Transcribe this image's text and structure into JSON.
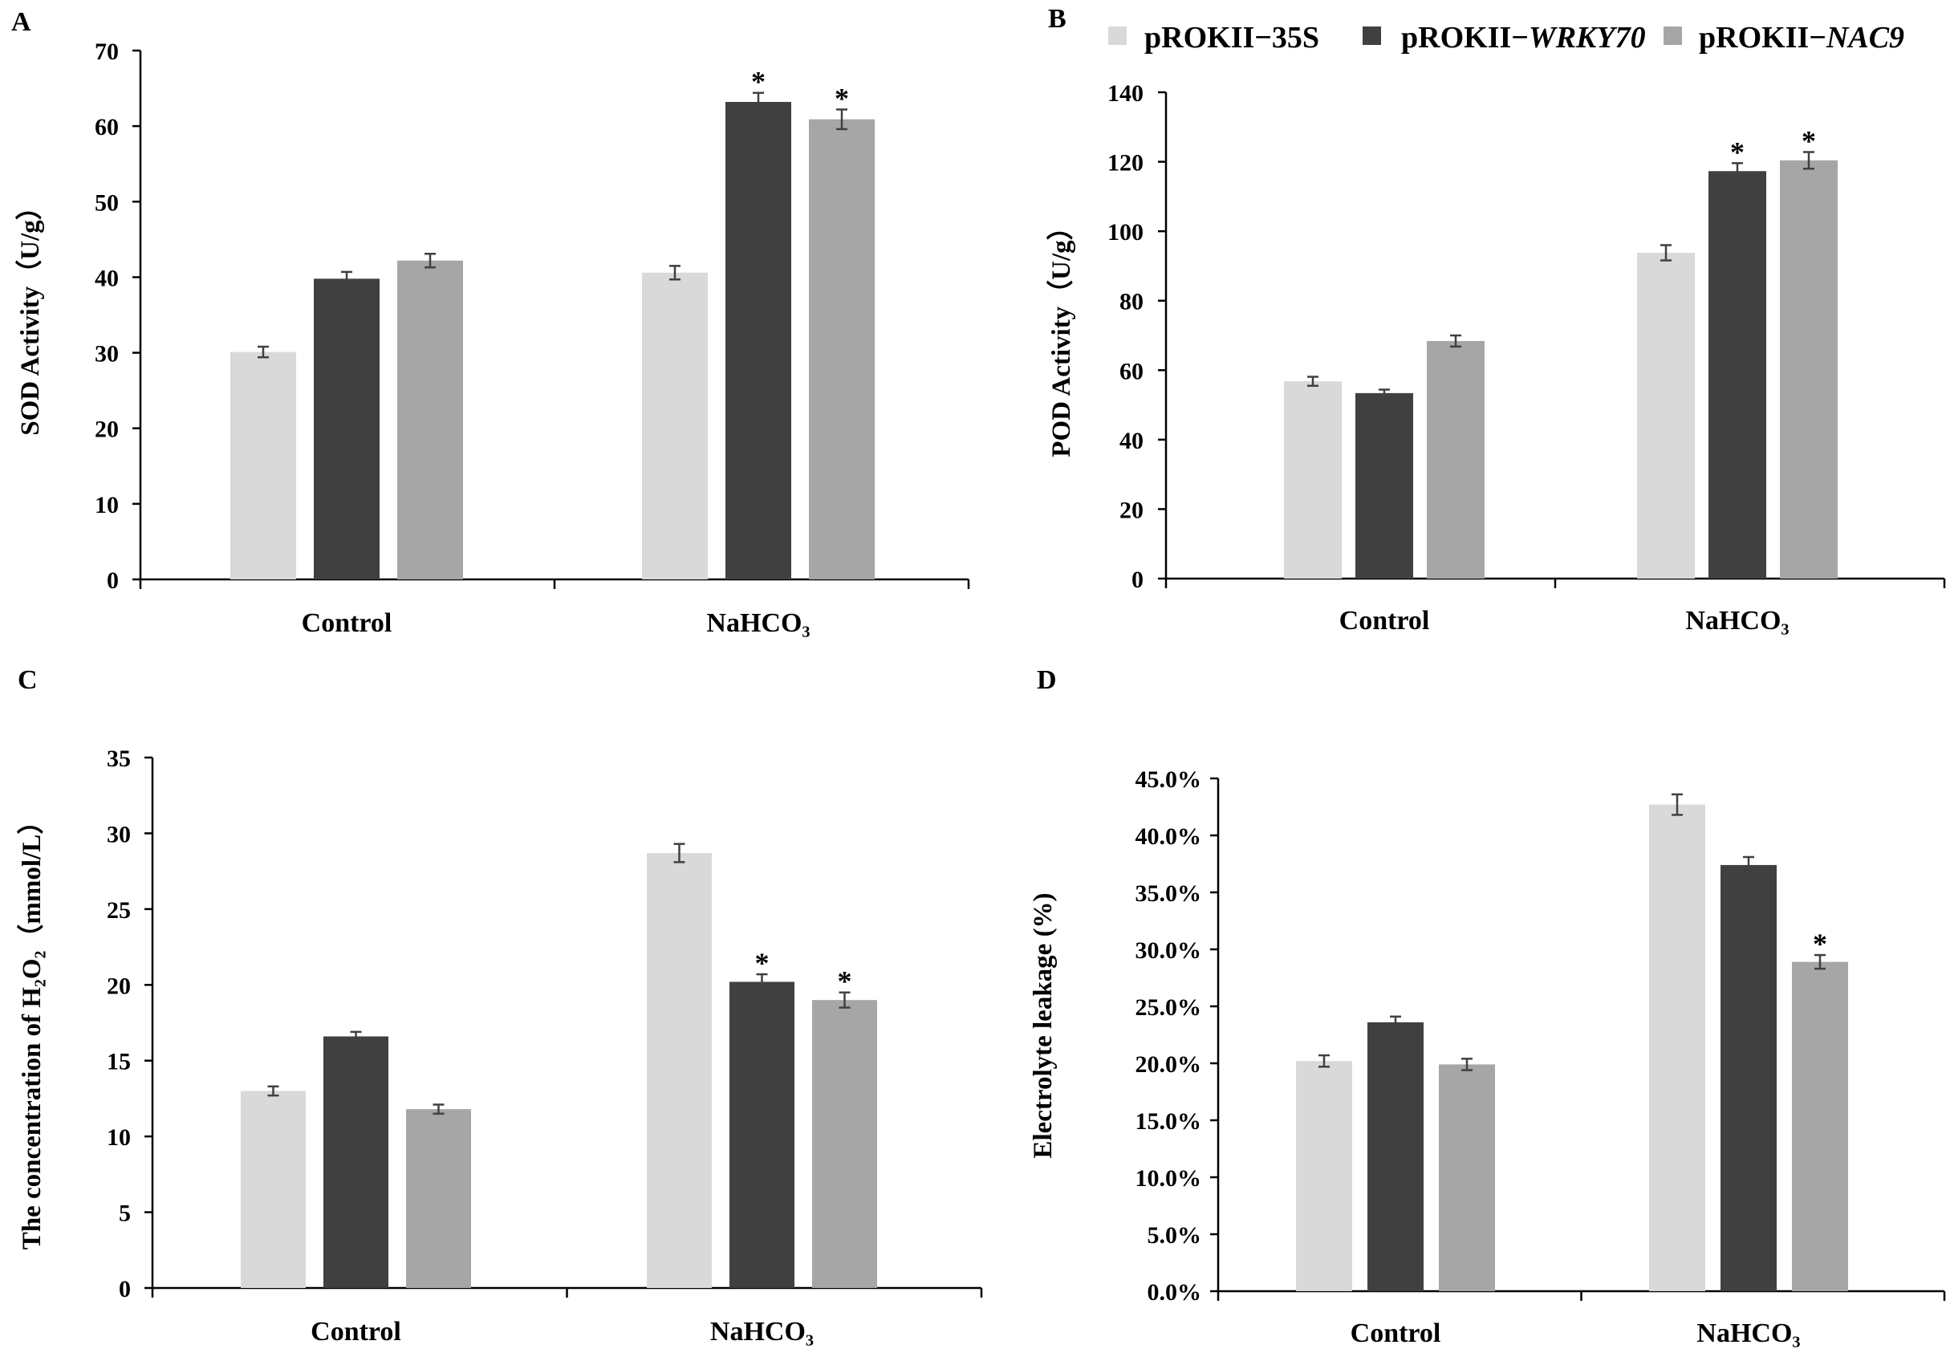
{
  "legend": [
    {
      "prefix": "pROKII−35S",
      "italic": "",
      "color": "#d9d9d9"
    },
    {
      "prefix": "pROKII−",
      "italic": "WRKY70",
      "color": "#404040"
    },
    {
      "prefix": "pROKII−",
      "italic": "NAC9",
      "color": "#a6a6a6"
    }
  ],
  "chart_data": [
    {
      "panel": "A",
      "type": "bar",
      "ylabel": "SOD Activity（U/g）",
      "categories": [
        "Control",
        "NaHCO₃"
      ],
      "ylim": [
        0,
        70
      ],
      "yticks": [
        0,
        10,
        20,
        30,
        40,
        50,
        60,
        70
      ],
      "tick_labels": [
        "0",
        "10",
        "20",
        "30",
        "40",
        "50",
        "60",
        "70"
      ],
      "series": [
        {
          "values": [
            30.1,
            40.6
          ],
          "errors": [
            0.7,
            0.9
          ],
          "significant": [
            false,
            false
          ]
        },
        {
          "values": [
            39.8,
            63.2
          ],
          "errors": [
            0.9,
            1.2
          ],
          "significant": [
            false,
            true
          ]
        },
        {
          "values": [
            42.2,
            60.9
          ],
          "errors": [
            0.9,
            1.3
          ],
          "significant": [
            false,
            true
          ]
        }
      ]
    },
    {
      "panel": "B",
      "type": "bar",
      "ylabel": "POD Activity（U/g）",
      "categories": [
        "Control",
        "NaHCO₃"
      ],
      "ylim": [
        0,
        140
      ],
      "yticks": [
        0,
        20,
        40,
        60,
        80,
        100,
        120,
        140
      ],
      "tick_labels": [
        "0",
        "20",
        "40",
        "60",
        "80",
        "100",
        "120",
        "140"
      ],
      "series": [
        {
          "values": [
            56.8,
            93.8
          ],
          "errors": [
            1.3,
            2.2
          ],
          "significant": [
            false,
            false
          ]
        },
        {
          "values": [
            53.4,
            117.3
          ],
          "errors": [
            1.0,
            2.3
          ],
          "significant": [
            false,
            true
          ]
        },
        {
          "values": [
            68.4,
            120.4
          ],
          "errors": [
            1.6,
            2.4
          ],
          "significant": [
            false,
            true
          ]
        }
      ]
    },
    {
      "panel": "C",
      "type": "bar",
      "ylabel": "The concentration of  H₂O₂（mmol/L）",
      "categories": [
        "Control",
        "NaHCO₃"
      ],
      "ylim": [
        0,
        35
      ],
      "yticks": [
        0,
        5,
        10,
        15,
        20,
        25,
        30,
        35
      ],
      "tick_labels": [
        "0",
        "5",
        "10",
        "15",
        "20",
        "25",
        "30",
        "35"
      ],
      "series": [
        {
          "values": [
            13.0,
            28.7
          ],
          "errors": [
            0.3,
            0.6
          ],
          "significant": [
            false,
            false
          ]
        },
        {
          "values": [
            16.6,
            20.2
          ],
          "errors": [
            0.3,
            0.5
          ],
          "significant": [
            false,
            true
          ]
        },
        {
          "values": [
            11.8,
            19.0
          ],
          "errors": [
            0.3,
            0.5
          ],
          "significant": [
            false,
            true
          ]
        }
      ]
    },
    {
      "panel": "D",
      "type": "bar",
      "ylabel": "Electrolyte leakage (%)",
      "categories": [
        "Control",
        "NaHCO₃"
      ],
      "ylim": [
        0,
        45
      ],
      "yticks": [
        0,
        5,
        10,
        15,
        20,
        25,
        30,
        35,
        40,
        45
      ],
      "tick_labels": [
        "0.0%",
        "5.0%",
        "10.0%",
        "15.0%",
        "20.0%",
        "25.0%",
        "30.0%",
        "35.0%",
        "40.0%",
        "45.0%"
      ],
      "series": [
        {
          "values": [
            20.2,
            42.7
          ],
          "errors": [
            0.5,
            0.9
          ],
          "significant": [
            false,
            false
          ]
        },
        {
          "values": [
            23.6,
            37.4
          ],
          "errors": [
            0.5,
            0.7
          ],
          "significant": [
            false,
            false
          ]
        },
        {
          "values": [
            19.9,
            28.9
          ],
          "errors": [
            0.5,
            0.6
          ],
          "significant": [
            false,
            true
          ]
        }
      ]
    }
  ]
}
